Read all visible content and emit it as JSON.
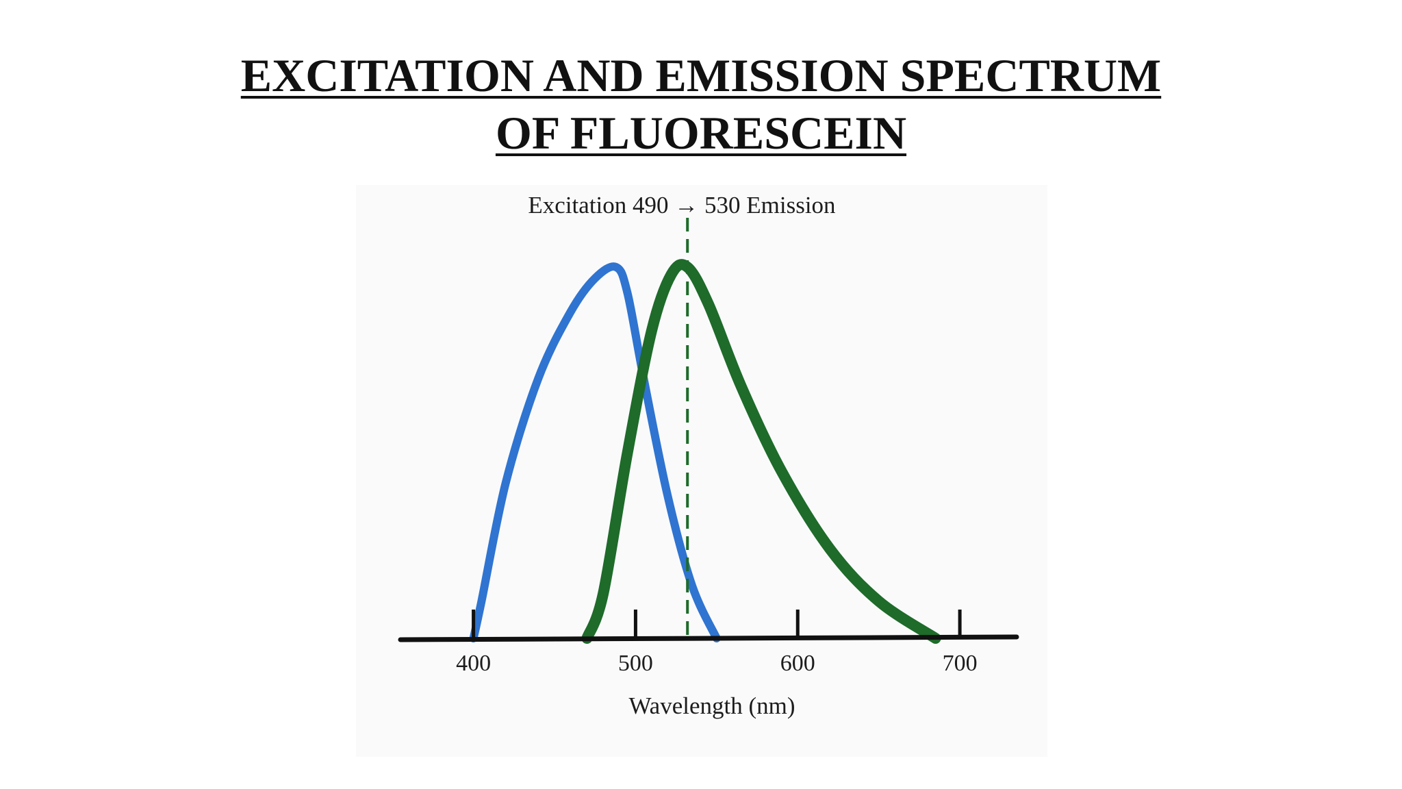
{
  "slide": {
    "title_line1": "EXCITATION AND EMISSION SPECTRUM",
    "title_line2": "OF FLUORESCEIN"
  },
  "chart_data": {
    "type": "line",
    "title": "EXCITATION AND EMISSION SPECTRUM OF FLUORESCEIN",
    "annotation": "Excitation 490 → 530 Emission",
    "xlabel": "Wavelength (nm)",
    "ylabel": "",
    "xlim": [
      355,
      735
    ],
    "ylim": [
      0,
      100
    ],
    "xticks": [
      400,
      500,
      600,
      700
    ],
    "xtick_labels": [
      "400",
      "500",
      "600",
      "700"
    ],
    "yticks": [],
    "grid": false,
    "legend": "none",
    "marker_line": {
      "x": 532,
      "style": "dashed",
      "color": "#1e6b2a"
    },
    "series": [
      {
        "color": "#2f74d0",
        "x": [
          400,
          405,
          420,
          440,
          460,
          475,
          488,
          495,
          505,
          520,
          535,
          550
        ],
        "y": [
          0,
          10,
          42,
          70,
          88,
          97,
          100,
          93,
          70,
          38,
          14,
          0
        ]
      },
      {
        "color": "#1e6b2a",
        "x": [
          470,
          480,
          495,
          510,
          522,
          532,
          545,
          565,
          590,
          620,
          650,
          685
        ],
        "y": [
          0,
          12,
          50,
          83,
          98,
          100,
          90,
          68,
          45,
          24,
          10,
          0
        ]
      }
    ]
  }
}
